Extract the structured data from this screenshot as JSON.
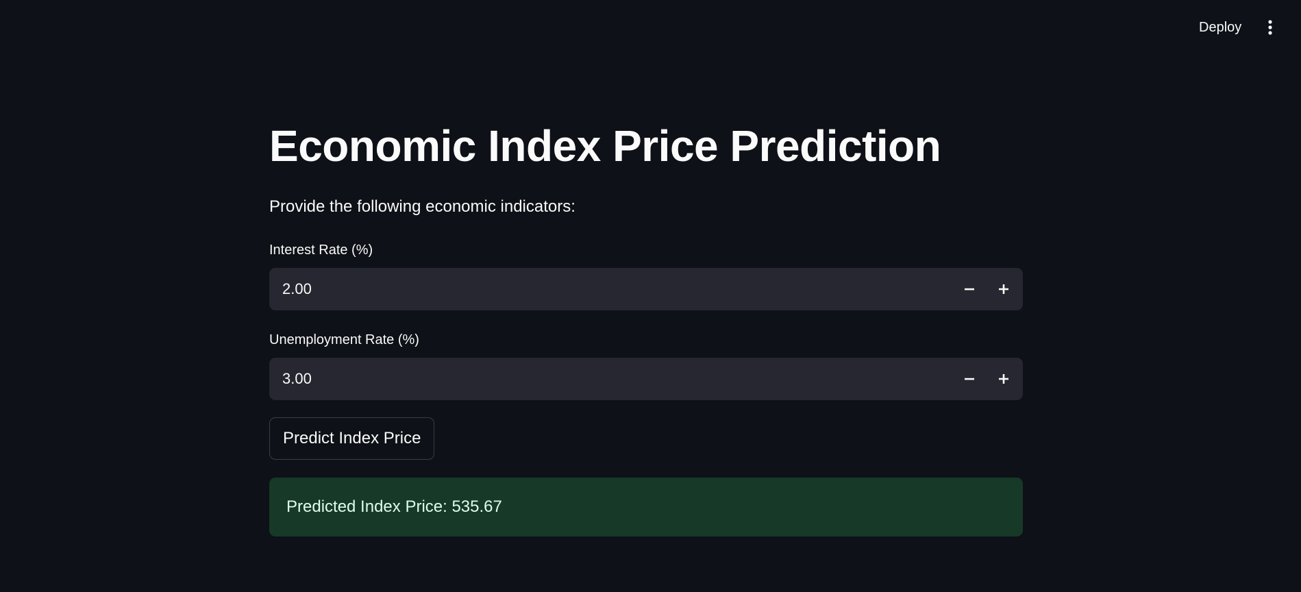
{
  "header": {
    "deploy_label": "Deploy",
    "menu_icon": "kebab-menu-icon"
  },
  "main": {
    "title": "Economic Index Price Prediction",
    "subtitle": "Provide the following economic indicators:",
    "fields": [
      {
        "label": "Interest Rate (%)",
        "value": "2.00"
      },
      {
        "label": "Unemployment Rate (%)",
        "value": "3.00"
      }
    ],
    "predict_button_label": "Predict Index Price",
    "result_text": "Predicted Index Price: 535.67"
  },
  "colors": {
    "background": "#0e1117",
    "input_bg": "#262730",
    "success_bg": "#173928",
    "success_text": "#dffde9",
    "text": "#fafafa"
  }
}
